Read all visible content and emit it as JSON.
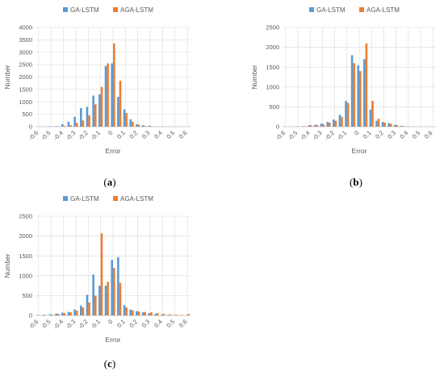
{
  "colors": {
    "series_a": "#5b9bd5",
    "series_b": "#ed7d31"
  },
  "chart_data": [
    {
      "type": "bar",
      "panel": "a",
      "caption_label": "a",
      "xlabel": "Error",
      "ylabel": "Number",
      "ylim": [
        0,
        4000
      ],
      "yticks": [
        "0",
        "500",
        "1000",
        "1500",
        "2000",
        "2500",
        "3000",
        "3500",
        "4000"
      ],
      "xticks": [
        "-0.6",
        "-0.5",
        "-0.4",
        "-0.3",
        "-0.2",
        "-0.1",
        "0",
        "0.1",
        "0.2",
        "0.3",
        "0.4",
        "0.5",
        "0.6"
      ],
      "legend_position": "top",
      "grid": true,
      "categories": [
        "-0.60",
        "-0.55",
        "-0.50",
        "-0.45",
        "-0.40",
        "-0.35",
        "-0.30",
        "-0.25",
        "-0.20",
        "-0.15",
        "-0.10",
        "-0.05",
        "0.00",
        "0.05",
        "0.10",
        "0.15",
        "0.20",
        "0.25",
        "0.30",
        "0.35",
        "0.40",
        "0.45",
        "0.50",
        "0.55",
        "0.60"
      ],
      "series": [
        {
          "name": "GA-LSTM",
          "values": [
            0,
            0,
            10,
            20,
            100,
            200,
            400,
            750,
            800,
            1250,
            1300,
            2450,
            2550,
            1200,
            700,
            300,
            100,
            60,
            40,
            10,
            10,
            5,
            0,
            0,
            0
          ]
        },
        {
          "name": "AGA-LSTM",
          "values": [
            0,
            0,
            5,
            10,
            30,
            60,
            150,
            250,
            450,
            900,
            1600,
            2550,
            3350,
            1850,
            550,
            200,
            80,
            30,
            20,
            10,
            5,
            0,
            0,
            0,
            0
          ]
        }
      ]
    },
    {
      "type": "bar",
      "panel": "b",
      "caption_label": "b",
      "xlabel": "Error",
      "ylabel": "Number",
      "ylim": [
        0,
        2500
      ],
      "yticks": [
        "0",
        "500",
        "1000",
        "1500",
        "2000",
        "2500"
      ],
      "xticks": [
        "-0.6",
        "-0.5",
        "-0.4",
        "-0.3",
        "-0.2",
        "-0.1",
        "0",
        "0.1",
        "0.2",
        "0.3",
        "0.4",
        "0.5",
        "0.6"
      ],
      "legend_position": "top",
      "grid": true,
      "categories": [
        "-0.60",
        "-0.55",
        "-0.50",
        "-0.45",
        "-0.40",
        "-0.35",
        "-0.30",
        "-0.25",
        "-0.20",
        "-0.15",
        "-0.10",
        "-0.05",
        "0.00",
        "0.05",
        "0.10",
        "0.15",
        "0.20",
        "0.25",
        "0.30",
        "0.35",
        "0.40",
        "0.45",
        "0.50",
        "0.55",
        "0.60"
      ],
      "series": [
        {
          "name": "GA-LSTM",
          "values": [
            0,
            0,
            5,
            10,
            40,
            50,
            80,
            120,
            180,
            300,
            650,
            1800,
            1550,
            1700,
            430,
            150,
            120,
            90,
            50,
            20,
            10,
            5,
            0,
            0,
            0
          ]
        },
        {
          "name": "AGA-LSTM",
          "values": [
            0,
            0,
            0,
            10,
            30,
            40,
            60,
            100,
            150,
            250,
            600,
            1600,
            1400,
            2100,
            650,
            200,
            100,
            70,
            40,
            15,
            5,
            0,
            0,
            0,
            0
          ]
        }
      ]
    },
    {
      "type": "bar",
      "panel": "c",
      "caption_label": "c",
      "xlabel": "Error",
      "ylabel": "Number",
      "ylim": [
        0,
        2500
      ],
      "yticks": [
        "0",
        "500",
        "1000",
        "1500",
        "2000",
        "2500"
      ],
      "xticks": [
        "-0.6",
        "-0.5",
        "-0.4",
        "-0.3",
        "-0.2",
        "-0.1",
        "0",
        "0.1",
        "0.2",
        "0.3",
        "0.4",
        "0.5",
        "0.6"
      ],
      "legend_position": "top",
      "grid": true,
      "categories": [
        "-0.60",
        "-0.55",
        "-0.50",
        "-0.45",
        "-0.40",
        "-0.35",
        "-0.30",
        "-0.25",
        "-0.20",
        "-0.15",
        "-0.10",
        "-0.05",
        "0.00",
        "0.05",
        "0.10",
        "0.15",
        "0.20",
        "0.25",
        "0.30",
        "0.35",
        "0.40",
        "0.45",
        "0.50",
        "0.55",
        "0.60"
      ],
      "series": [
        {
          "name": "GA-LSTM",
          "values": [
            10,
            20,
            30,
            50,
            70,
            90,
            150,
            250,
            520,
            1030,
            750,
            750,
            1400,
            1470,
            260,
            150,
            110,
            80,
            60,
            40,
            20,
            10,
            10,
            5,
            5
          ]
        },
        {
          "name": "AGA-LSTM",
          "values": [
            5,
            10,
            20,
            40,
            60,
            80,
            120,
            200,
            330,
            500,
            2070,
            850,
            1200,
            820,
            200,
            130,
            100,
            90,
            80,
            60,
            40,
            30,
            20,
            10,
            40
          ]
        }
      ]
    }
  ]
}
